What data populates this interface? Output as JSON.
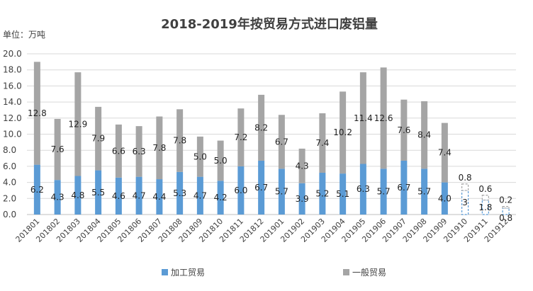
{
  "chart_data": {
    "type": "bar",
    "stacked": true,
    "title": "2018-2019年按贸易方式进口废铝量",
    "unit_label": "单位：万吨",
    "ylim": [
      0,
      20
    ],
    "yticks": [
      "0.0",
      "2.0",
      "4.0",
      "6.0",
      "8.0",
      "10.0",
      "12.0",
      "14.0",
      "16.0",
      "18.0",
      "20.0"
    ],
    "grid": true,
    "legend_position": "bottom",
    "categories": [
      "201801",
      "201802",
      "201803",
      "201804",
      "201805",
      "201806",
      "201807",
      "201808",
      "201809",
      "201810",
      "201811",
      "201812",
      "201901",
      "201902",
      "201903",
      "201904",
      "201905",
      "201906",
      "201907",
      "201908",
      "201909",
      "201910",
      "201911",
      "201912"
    ],
    "series": [
      {
        "name": "加工贸易",
        "color": "#5b9bd5",
        "values": [
          6.2,
          4.3,
          4.8,
          5.5,
          4.6,
          4.7,
          4.4,
          5.3,
          4.7,
          4.2,
          6.0,
          6.7,
          5.7,
          3.9,
          5.2,
          5.1,
          6.3,
          5.7,
          6.7,
          5.7,
          4.0,
          3,
          1.8,
          0.8
        ],
        "labels": [
          "6.2",
          "4.3",
          "4.8",
          "5.5",
          "4.6",
          "4.7",
          "4.4",
          "5.3",
          "4.7",
          "4.2",
          "6.0",
          "6.7",
          "5.7",
          "3.9",
          "5.2",
          "5.1",
          "6.3",
          "5.7",
          "6.7",
          "5.7",
          "4.0",
          "3",
          "1.8",
          "0.8"
        ]
      },
      {
        "name": "一般贸易",
        "color": "#a5a5a5",
        "values": [
          12.8,
          7.6,
          12.9,
          7.9,
          6.6,
          6.3,
          7.8,
          7.8,
          5.0,
          5.0,
          7.2,
          8.2,
          6.7,
          4.3,
          7.4,
          10.2,
          11.4,
          12.6,
          7.6,
          8.4,
          7.4,
          0.8,
          0.6,
          0.2
        ],
        "labels": [
          "12.8",
          "7.6",
          "12.9",
          "7.9",
          "6.6",
          "6.3",
          "7.8",
          "7.8",
          "5.0",
          "5.0",
          "7.2",
          "8.2",
          "6.7",
          "4.3",
          "7.4",
          "10.2",
          "11.4",
          "12.6",
          "7.6",
          "8.4",
          "7.4",
          "0.8",
          "0.6",
          "0.2"
        ]
      }
    ],
    "forecast_categories": [
      "201910",
      "201911",
      "201912"
    ],
    "forecast_style": "dashed-outline"
  }
}
